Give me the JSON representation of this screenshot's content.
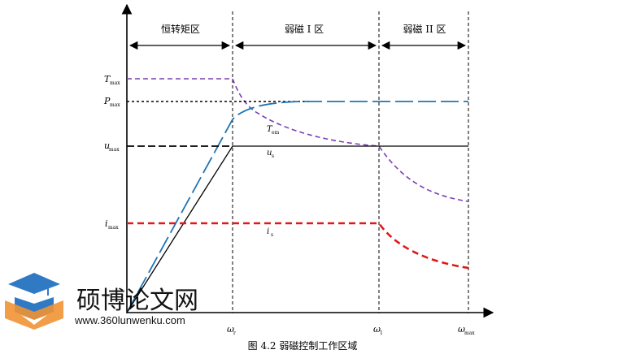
{
  "regions": {
    "constant_torque": "恒转矩区",
    "field_weakening_1": "弱磁 I 区",
    "field_weakening_2": "弱磁 II 区"
  },
  "y_labels": {
    "t_max": {
      "main": "T",
      "sub": "max"
    },
    "p_max": {
      "main": "P",
      "sub": "max"
    },
    "u_max": {
      "main": "u",
      "sub": "max"
    },
    "i_max": {
      "main": "i",
      "sub": "max"
    }
  },
  "curve_labels": {
    "t_em": {
      "main": "T",
      "sub": "em"
    },
    "u_s": {
      "main": "u",
      "sub": "s"
    },
    "i_s": {
      "main": "i",
      "sub": "s"
    }
  },
  "x_labels": {
    "omega_r": {
      "main": "ω",
      "sub": "r"
    },
    "omega_1": {
      "main": "ω",
      "sub": "1"
    },
    "omega_max": {
      "main": "ω",
      "sub": "max"
    }
  },
  "caption": "图 4.2 弱磁控制工作区域",
  "watermark": {
    "title": "硕博论文网",
    "url": "www.360lunwenku.com"
  },
  "colors": {
    "torque": "#7a3fb0",
    "power": "#1f74b5",
    "current": "#e01818",
    "voltage": "#000000",
    "logo_blue": "#1f6fc0",
    "logo_orange": "#f08a24"
  }
}
